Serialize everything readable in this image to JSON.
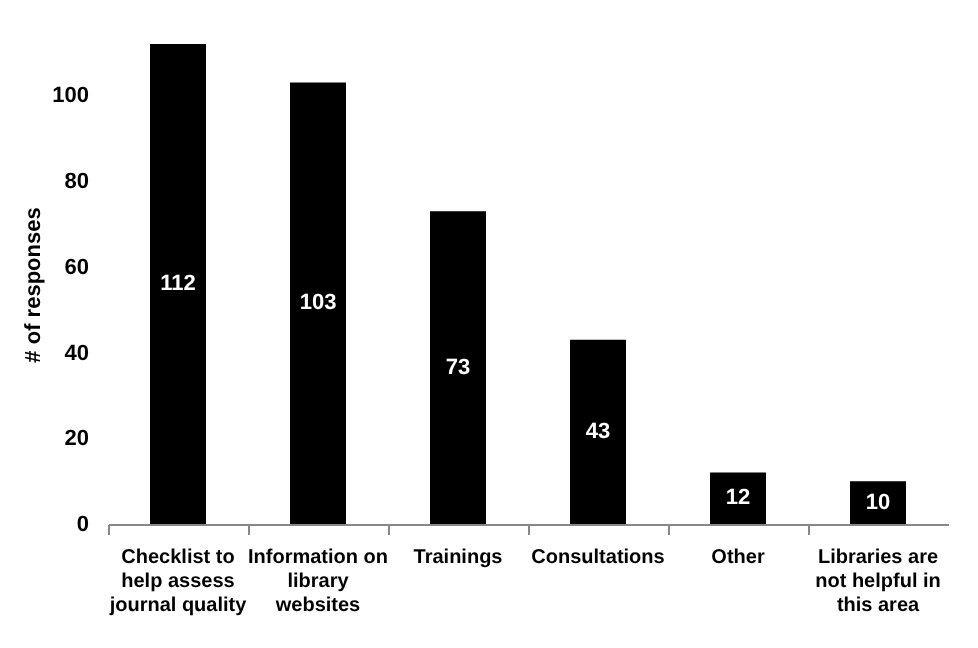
{
  "chart_data": {
    "type": "bar",
    "ylabel": "# of responses",
    "categories": [
      "Checklist to help assess journal quality",
      "Information on library websites",
      "Trainings",
      "Consultations",
      "Other",
      "Libraries are not helpful in this area"
    ],
    "values": [
      112,
      103,
      73,
      43,
      12,
      10
    ],
    "color": "#000000",
    "ylim": [
      0,
      112
    ],
    "yticks": [
      0,
      20,
      40,
      60,
      80,
      100
    ],
    "grid": false,
    "data_labels": true
  }
}
